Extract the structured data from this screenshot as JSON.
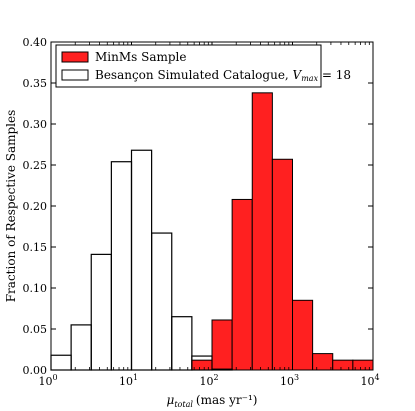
{
  "chart_data": {
    "type": "histogram",
    "x_scale": "log",
    "xlim": [
      1,
      10000
    ],
    "ylim": [
      0,
      0.4
    ],
    "xlabel": "μ",
    "xlabel_sub": "total",
    "xlabel_units": "(mas yr⁻¹)",
    "ylabel": "Fraction of Respective Samples",
    "x_ticks": [
      {
        "value": 1,
        "base": "10",
        "exp": "0"
      },
      {
        "value": 10,
        "base": "10",
        "exp": "1"
      },
      {
        "value": 100,
        "base": "10",
        "exp": "2"
      },
      {
        "value": 1000,
        "base": "10",
        "exp": "3"
      },
      {
        "value": 10000,
        "base": "10",
        "exp": "4"
      }
    ],
    "y_ticks": [
      0.0,
      0.05,
      0.1,
      0.15,
      0.2,
      0.25,
      0.3,
      0.35,
      0.4
    ],
    "y_tick_labels": [
      "0.00",
      "0.05",
      "0.10",
      "0.15",
      "0.20",
      "0.25",
      "0.30",
      "0.35",
      "0.40"
    ],
    "legend_position": "top-left",
    "series": [
      {
        "name": "MinMs Sample",
        "style": "filled",
        "color": "#ff2020",
        "bin_edges": [
          56.2,
          100,
          177.8,
          316.2,
          562.3,
          1000,
          1778,
          3162,
          5623,
          10000
        ],
        "values": [
          0.012,
          0.061,
          0.208,
          0.338,
          0.257,
          0.085,
          0.02,
          0.012,
          0.012
        ]
      },
      {
        "name": "Besançon Simulated Catalogue, ",
        "name_math": "V",
        "name_sub": "max",
        "name_tail": " = 18",
        "style": "step",
        "color": "#000000",
        "bin_edges": [
          1,
          1.778,
          3.162,
          5.623,
          10,
          17.78,
          31.62,
          56.23,
          100,
          177.8
        ],
        "values": [
          0.018,
          0.055,
          0.141,
          0.254,
          0.268,
          0.167,
          0.065,
          0.017,
          0.001
        ]
      }
    ]
  }
}
